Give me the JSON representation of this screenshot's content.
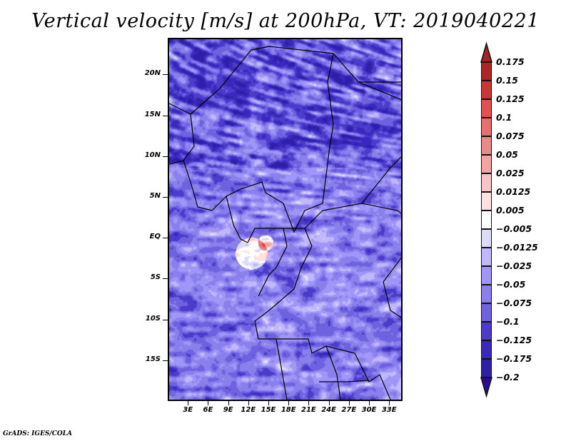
{
  "title": "Vertical velocity [m/s] at 200hPa, VT: 2019040221",
  "credit": "GrADS: IGES/COLA",
  "map": {
    "variable": "Vertical velocity",
    "units": "m/s",
    "level": "200hPa",
    "valid_time": "2019040221",
    "lon_range": [
      0,
      35
    ],
    "lat_range": [
      -20,
      24.5
    ],
    "y_axis_labels": [
      {
        "label": "20N",
        "lat": 20
      },
      {
        "label": "15N",
        "lat": 15
      },
      {
        "label": "10N",
        "lat": 10
      },
      {
        "label": "5N",
        "lat": 5
      },
      {
        "label": "EQ",
        "lat": 0
      },
      {
        "label": "5S",
        "lat": -5
      },
      {
        "label": "10S",
        "lat": -10
      },
      {
        "label": "15S",
        "lat": -15
      }
    ],
    "x_axis_labels": [
      {
        "label": "3E",
        "lon": 3
      },
      {
        "label": "6E",
        "lon": 6
      },
      {
        "label": "9E",
        "lon": 9
      },
      {
        "label": "12E",
        "lon": 12
      },
      {
        "label": "15E",
        "lon": 15
      },
      {
        "label": "18E",
        "lon": 18
      },
      {
        "label": "21E",
        "lon": 21
      },
      {
        "label": "24E",
        "lon": 24
      },
      {
        "label": "27E",
        "lon": 27
      },
      {
        "label": "30E",
        "lon": 30
      },
      {
        "label": "33E",
        "lon": 33
      }
    ]
  },
  "colorbar": {
    "levels": [
      {
        "label": "0.175",
        "color": "#b02424"
      },
      {
        "label": "0.15",
        "color": "#c83636"
      },
      {
        "label": "0.125",
        "color": "#e45050"
      },
      {
        "label": "0.1",
        "color": "#e67070"
      },
      {
        "label": "0.075",
        "color": "#e88a8a"
      },
      {
        "label": "0.05",
        "color": "#f5a2a2"
      },
      {
        "label": "0.025",
        "color": "#fac4c4"
      },
      {
        "label": "0.0125",
        "color": "#fde2e2"
      },
      {
        "label": "0.005",
        "color": "#ffffff"
      },
      {
        "label": "-0.005",
        "color": "#dcdcfa"
      },
      {
        "label": "-0.0125",
        "color": "#c0b8fa"
      },
      {
        "label": "-0.025",
        "color": "#a096f8"
      },
      {
        "label": "-0.05",
        "color": "#8a80ec"
      },
      {
        "label": "-0.075",
        "color": "#6e62e0"
      },
      {
        "label": "-0.1",
        "color": "#4c3ccc"
      },
      {
        "label": "-0.125",
        "color": "#3a28bc"
      },
      {
        "label": "-0.175",
        "color": "#2e1ea8"
      },
      {
        "label": "-0.2",
        "color": ""
      }
    ],
    "top_arrow_color": "#a82020",
    "bottom_arrow_color": "#2a0aa0"
  }
}
